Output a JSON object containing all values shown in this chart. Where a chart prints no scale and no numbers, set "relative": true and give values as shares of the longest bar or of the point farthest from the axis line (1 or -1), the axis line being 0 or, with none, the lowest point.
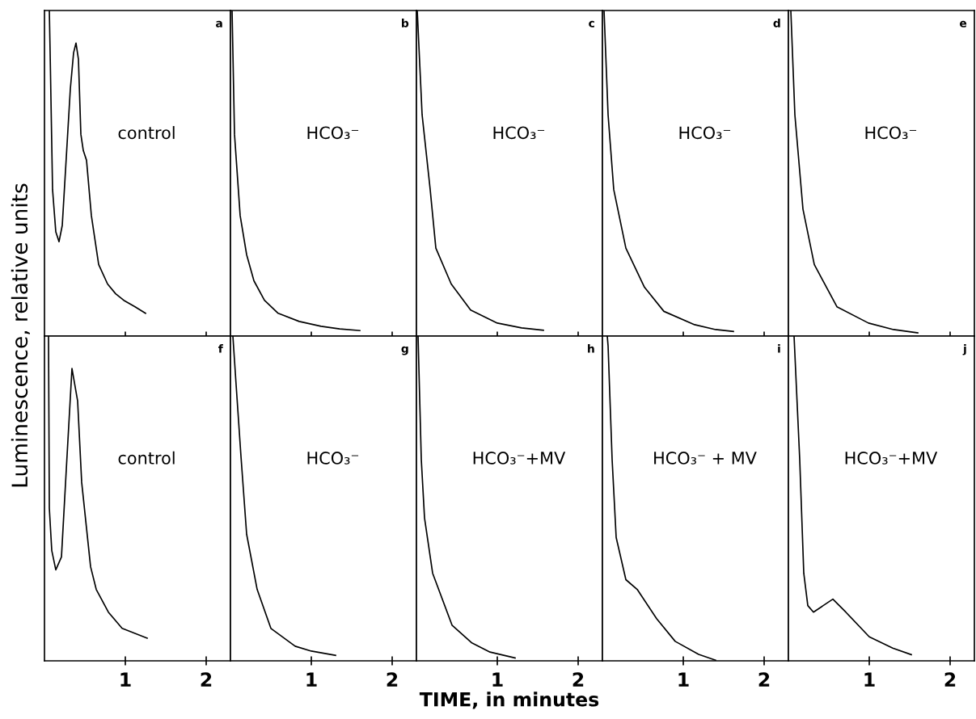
{
  "chart_data": [
    {
      "type": "line",
      "relative": true,
      "title": "a",
      "ylabel": "Luminescence, relative units",
      "annotations": [
        "control"
      ],
      "xlim": [
        0,
        2.3
      ],
      "xticks": [
        1,
        2
      ],
      "tick_labels": false,
      "line_style": "solid",
      "marker": "none",
      "grid": false,
      "legend": false,
      "series": [
        {
          "color": "#000000",
          "x": [
            0.06,
            0.07,
            0.1,
            0.14,
            0.18,
            0.22,
            0.27,
            0.32,
            0.36,
            0.39,
            0.42,
            0.45,
            0.48,
            0.52,
            0.58,
            0.67,
            0.78,
            0.88,
            0.98,
            1.12,
            1.25
          ],
          "values": [
            1.0,
            0.87,
            0.45,
            0.32,
            0.29,
            0.34,
            0.55,
            0.76,
            0.87,
            0.9,
            0.85,
            0.62,
            0.57,
            0.54,
            0.37,
            0.22,
            0.16,
            0.13,
            0.11,
            0.09,
            0.07
          ]
        }
      ]
    },
    {
      "type": "line",
      "relative": true,
      "title": "b",
      "annotations": [
        "HCO₃⁻"
      ],
      "xlim": [
        0,
        2.3
      ],
      "xticks": [
        1,
        2
      ],
      "tick_labels": false,
      "line_style": "solid",
      "marker": "none",
      "grid": false,
      "legend": false,
      "series": [
        {
          "color": "#000000",
          "x": [
            0.02,
            0.05,
            0.12,
            0.2,
            0.29,
            0.42,
            0.59,
            0.85,
            1.12,
            1.35,
            1.6
          ],
          "values": [
            1.0,
            0.62,
            0.37,
            0.25,
            0.17,
            0.11,
            0.07,
            0.045,
            0.03,
            0.022,
            0.017
          ]
        }
      ]
    },
    {
      "type": "line",
      "relative": true,
      "title": "c",
      "annotations": [
        "HCO₃⁻"
      ],
      "xlim": [
        0,
        2.3
      ],
      "xticks": [
        1,
        2
      ],
      "tick_labels": false,
      "line_style": "solid",
      "marker": "none",
      "grid": false,
      "legend": false,
      "series": [
        {
          "color": "#000000",
          "x": [
            0.01,
            0.07,
            0.17,
            0.24,
            0.43,
            0.67,
            1.0,
            1.3,
            1.57
          ],
          "values": [
            1.0,
            0.68,
            0.45,
            0.27,
            0.16,
            0.08,
            0.04,
            0.025,
            0.018
          ]
        }
      ]
    },
    {
      "type": "line",
      "relative": true,
      "title": "d",
      "annotations": [
        "HCO₃⁻"
      ],
      "xlim": [
        0,
        2.3
      ],
      "xticks": [
        1,
        2
      ],
      "tick_labels": false,
      "line_style": "solid",
      "marker": "none",
      "grid": false,
      "legend": false,
      "series": [
        {
          "color": "#000000",
          "x": [
            0.02,
            0.07,
            0.14,
            0.29,
            0.52,
            0.76,
            1.14,
            1.4,
            1.62
          ],
          "values": [
            1.0,
            0.68,
            0.45,
            0.27,
            0.15,
            0.076,
            0.035,
            0.02,
            0.014
          ]
        }
      ]
    },
    {
      "type": "line",
      "relative": true,
      "title": "e",
      "annotations": [
        "HCO₃⁻"
      ],
      "xlim": [
        0,
        2.3
      ],
      "xticks": [
        1,
        2
      ],
      "tick_labels": false,
      "line_style": "solid",
      "marker": "none",
      "grid": false,
      "legend": false,
      "series": [
        {
          "color": "#000000",
          "x": [
            0.03,
            0.08,
            0.18,
            0.32,
            0.6,
            0.99,
            1.3,
            1.6
          ],
          "values": [
            1.0,
            0.68,
            0.39,
            0.22,
            0.09,
            0.04,
            0.02,
            0.01
          ]
        }
      ]
    },
    {
      "type": "line",
      "relative": true,
      "title": "f",
      "annotations": [
        "control"
      ],
      "xlim": [
        0,
        2.3
      ],
      "xticks": [
        1,
        2
      ],
      "tick_labels": "x",
      "line_style": "solid",
      "marker": "none",
      "grid": false,
      "legend": false,
      "series": [
        {
          "color": "#000000",
          "x": [
            0.05,
            0.06,
            0.09,
            0.14,
            0.21,
            0.27,
            0.34,
            0.41,
            0.46,
            0.57,
            0.64,
            0.79,
            0.96,
            1.27
          ],
          "values": [
            1.0,
            0.47,
            0.34,
            0.28,
            0.32,
            0.59,
            0.9,
            0.8,
            0.55,
            0.29,
            0.22,
            0.15,
            0.1,
            0.07
          ]
        }
      ]
    },
    {
      "type": "line",
      "relative": true,
      "title": "g",
      "annotations": [
        "HCO₃⁻"
      ],
      "xlim": [
        0,
        2.3
      ],
      "xticks": [
        1,
        2
      ],
      "tick_labels": "x",
      "line_style": "solid",
      "marker": "none",
      "grid": false,
      "legend": false,
      "series": [
        {
          "color": "#000000",
          "x": [
            0.03,
            0.07,
            0.13,
            0.2,
            0.33,
            0.5,
            0.8,
            1.0,
            1.3
          ],
          "values": [
            1.0,
            0.85,
            0.63,
            0.39,
            0.22,
            0.1,
            0.045,
            0.03,
            0.017
          ]
        }
      ]
    },
    {
      "type": "line",
      "relative": true,
      "title": "h",
      "xlabel": "TIME, in minutes",
      "annotations": [
        "HCO₃⁻+MV"
      ],
      "xlim": [
        0,
        2.3
      ],
      "xticks": [
        1,
        2
      ],
      "tick_labels": "x",
      "line_style": "solid",
      "marker": "none",
      "grid": false,
      "legend": false,
      "series": [
        {
          "color": "#000000",
          "x": [
            0.02,
            0.06,
            0.1,
            0.2,
            0.44,
            0.68,
            0.91,
            1.22
          ],
          "values": [
            1.0,
            0.62,
            0.44,
            0.27,
            0.11,
            0.056,
            0.027,
            0.009
          ]
        }
      ]
    },
    {
      "type": "line",
      "relative": true,
      "title": "i",
      "annotations": [
        "HCO₃⁻ + MV"
      ],
      "xlim": [
        0,
        2.3
      ],
      "xticks": [
        1,
        2
      ],
      "tick_labels": "x",
      "line_style": "solid",
      "marker": "none",
      "grid": false,
      "legend": false,
      "series": [
        {
          "color": "#000000",
          "x": [
            0.06,
            0.07,
            0.12,
            0.17,
            0.29,
            0.43,
            0.67,
            0.9,
            1.19,
            1.4
          ],
          "values": [
            1.0,
            0.97,
            0.62,
            0.38,
            0.25,
            0.22,
            0.13,
            0.06,
            0.02,
            0.002
          ]
        }
      ]
    },
    {
      "type": "line",
      "relative": true,
      "title": "j",
      "annotations": [
        "HCO₃⁻+MV"
      ],
      "xlim": [
        0,
        2.3
      ],
      "xticks": [
        1,
        2
      ],
      "tick_labels": "x",
      "line_style": "solid",
      "marker": "none",
      "grid": false,
      "legend": false,
      "series": [
        {
          "color": "#000000",
          "x": [
            0.07,
            0.14,
            0.19,
            0.24,
            0.31,
            0.43,
            0.55,
            0.71,
            1.0,
            1.29,
            1.52
          ],
          "values": [
            1.0,
            0.62,
            0.27,
            0.17,
            0.15,
            0.17,
            0.19,
            0.15,
            0.074,
            0.039,
            0.019
          ]
        }
      ]
    }
  ]
}
